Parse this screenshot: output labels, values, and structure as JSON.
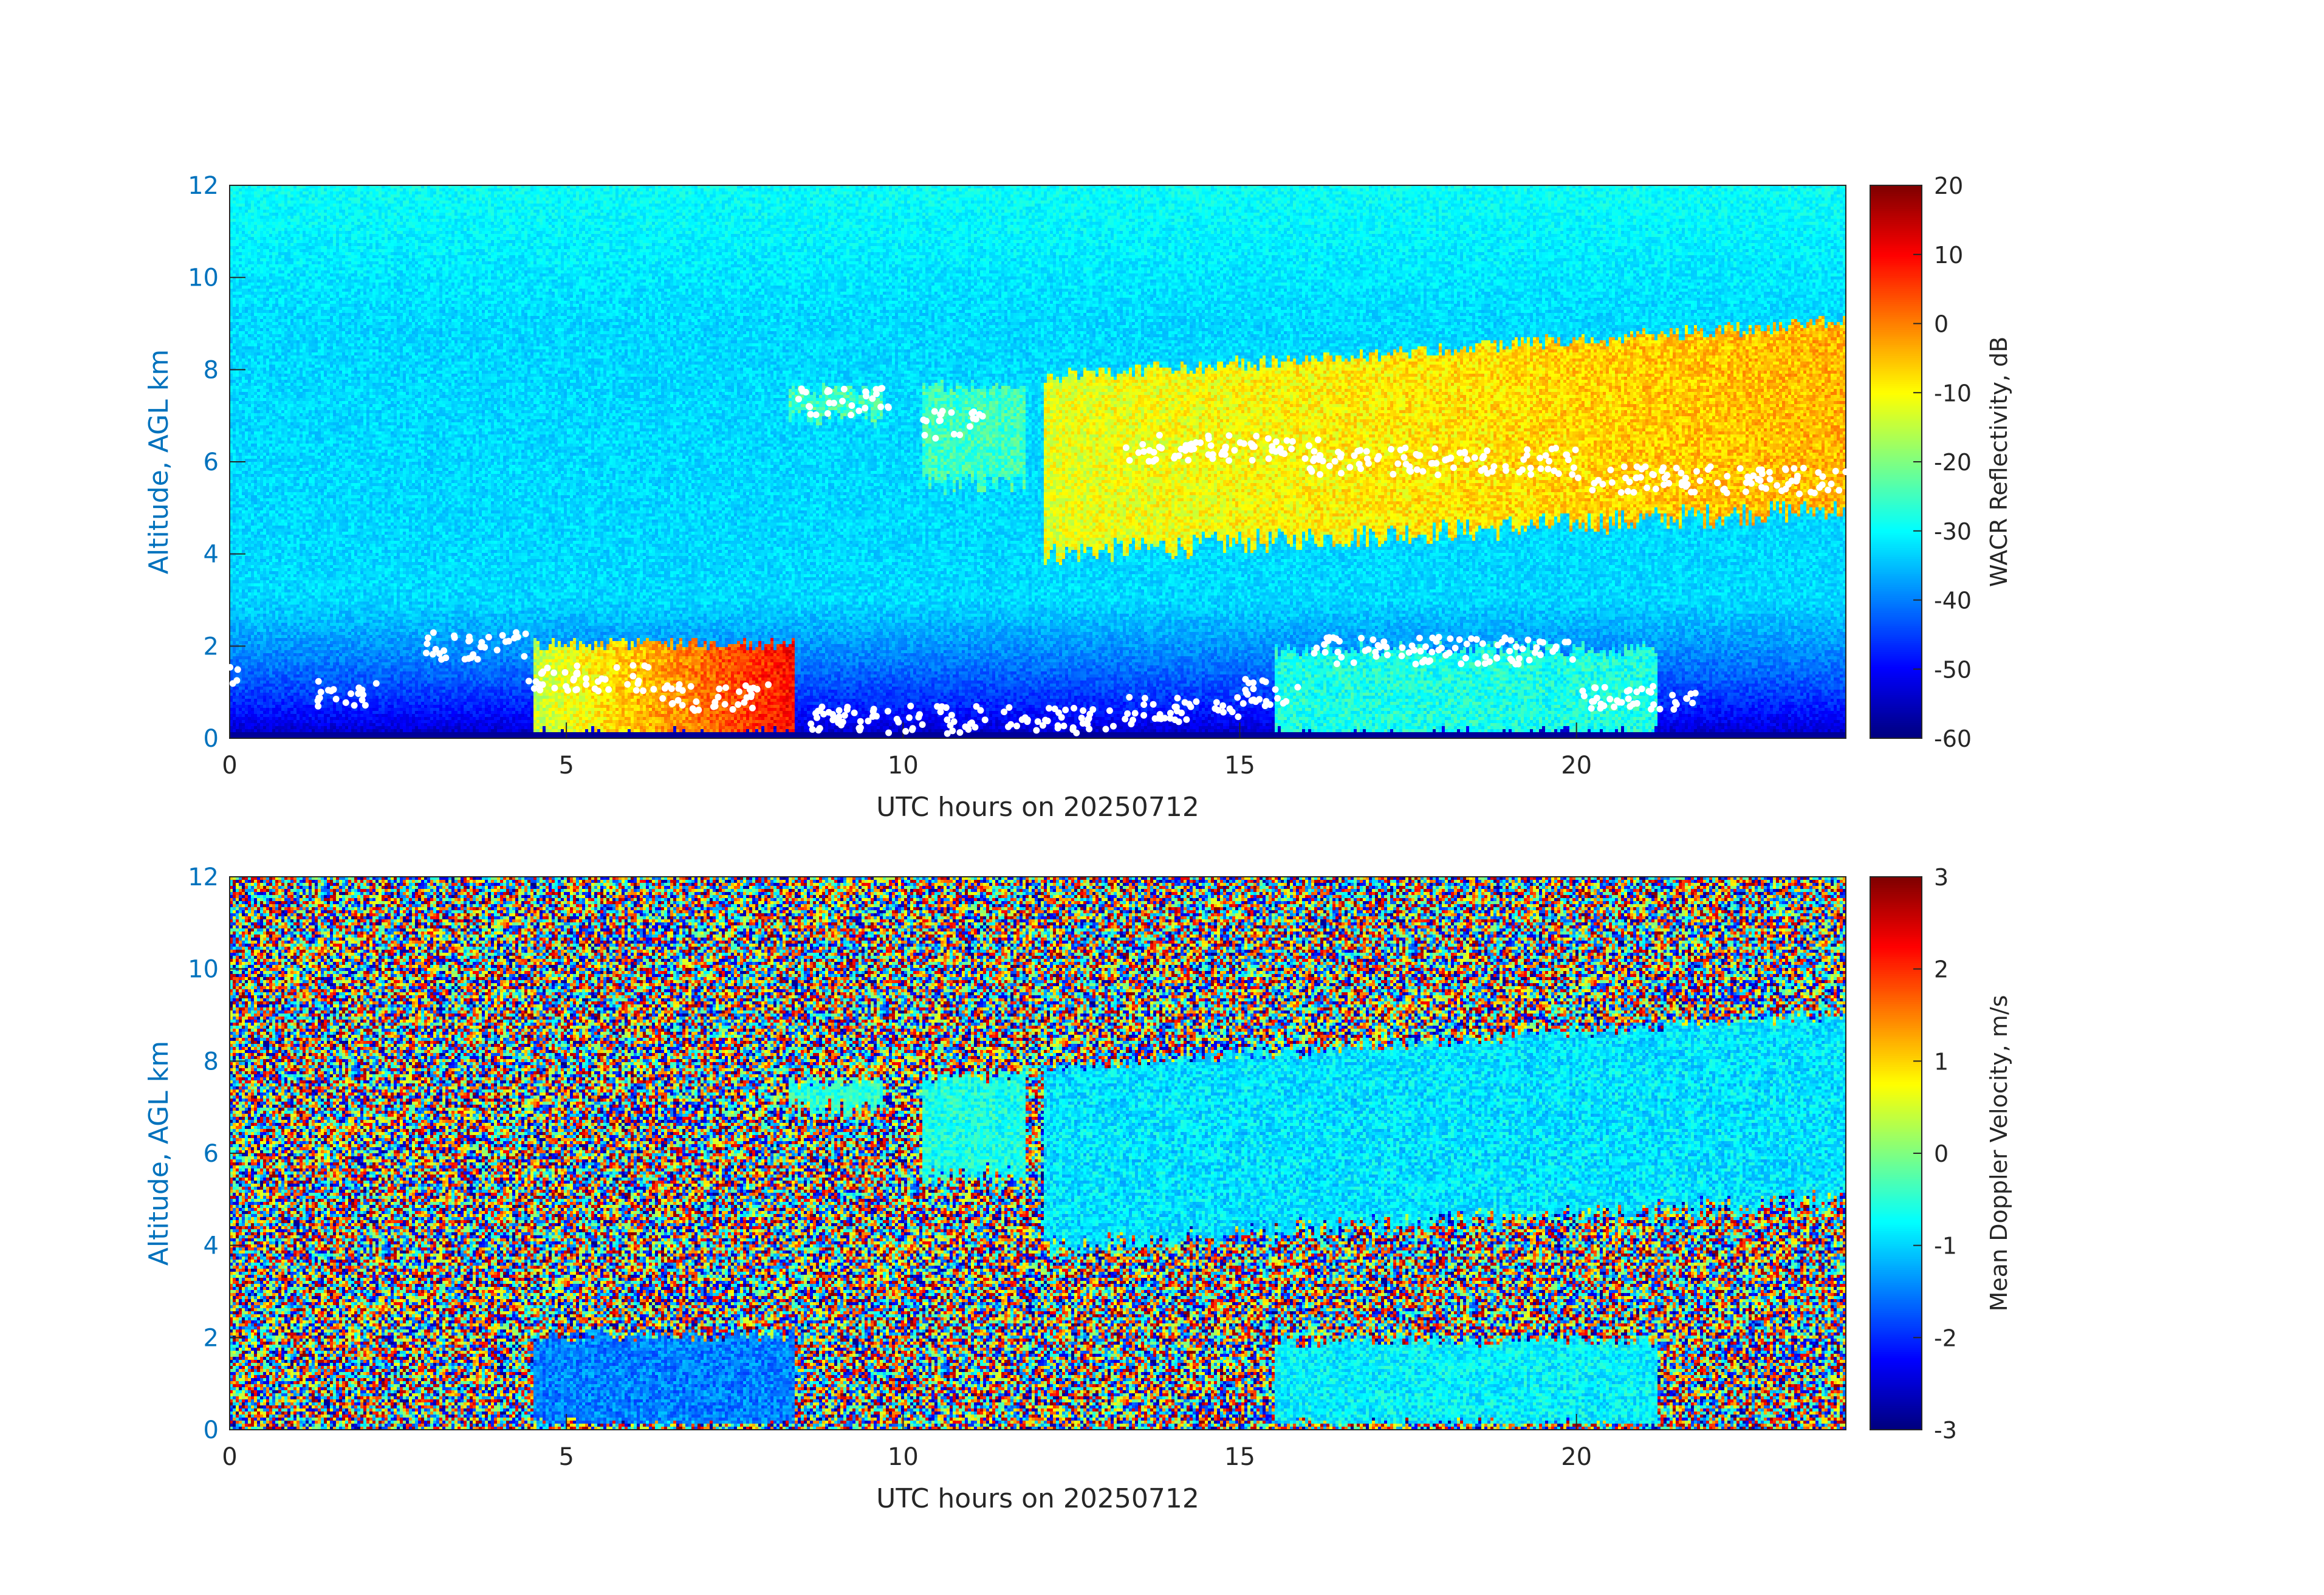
{
  "chart_data": [
    {
      "type": "heatmap",
      "xlabel": "UTC hours on 20250712",
      "ylabel": "Altitude, AGL km",
      "xlim": [
        0,
        24
      ],
      "ylim": [
        0,
        12
      ],
      "xticks": [
        "0",
        "5",
        "10",
        "15",
        "20"
      ],
      "yticks": [
        "0",
        "2",
        "4",
        "6",
        "8",
        "10",
        "12"
      ],
      "colorbar": {
        "label": "WACR Reflectivity, dB",
        "range": [
          -60,
          20
        ],
        "ticks": [
          "20",
          "10",
          "0",
          "-10",
          "-20",
          "-30",
          "-40",
          "-50",
          "-60"
        ],
        "colormap": "jet"
      },
      "background_dB": -33,
      "near_surface_dB": -58,
      "cloud_layers": [
        {
          "x": [
            12.1,
            24.0
          ],
          "base_km": [
            4.0,
            5.0
          ],
          "top_km": [
            8.0,
            9.2
          ],
          "dB": [
            -12,
            -4
          ]
        },
        {
          "x": [
            8.3,
            9.7
          ],
          "base_km": 7.0,
          "top_km": 7.7,
          "dB": -25
        },
        {
          "x": [
            10.3,
            11.8
          ],
          "base_km": 5.5,
          "top_km": 7.8,
          "dB": -25
        },
        {
          "x": [
            4.5,
            8.4
          ],
          "base_km": 0.0,
          "top_km": 2.2,
          "dB": [
            -15,
            10
          ]
        },
        {
          "x": [
            15.5,
            21.2
          ],
          "base_km": 0.0,
          "top_km": 2.1,
          "dB": -28
        }
      ],
      "ceilometer_cloud_base_markers": {
        "color": "#ffffff"
      }
    },
    {
      "type": "heatmap",
      "xlabel": "UTC hours on 20250712",
      "ylabel": "Altitude, AGL km",
      "xlim": [
        0,
        24
      ],
      "ylim": [
        0,
        12
      ],
      "xticks": [
        "0",
        "5",
        "10",
        "15",
        "20"
      ],
      "yticks": [
        "0",
        "2",
        "4",
        "6",
        "8",
        "10",
        "12"
      ],
      "colorbar": {
        "label": "Mean Doppler Velocity, m/s",
        "range": [
          -3,
          3
        ],
        "ticks": [
          "3",
          "2",
          "1",
          "0",
          "-1",
          "-2",
          "-3"
        ],
        "colormap": "jet"
      },
      "noise": "random velocity in [-3, 3] outside detected cloud",
      "cloud_velocity_ms": -0.9,
      "cloud_layers": [
        {
          "x": [
            12.1,
            24.0
          ],
          "base_km": [
            4.0,
            5.0
          ],
          "top_km": [
            8.0,
            9.2
          ],
          "ms": -0.9
        },
        {
          "x": [
            8.3,
            9.7
          ],
          "base_km": 7.0,
          "top_km": 7.7,
          "ms": -0.5
        },
        {
          "x": [
            10.3,
            11.8
          ],
          "base_km": 5.5,
          "top_km": 7.8,
          "ms": -0.6
        },
        {
          "x": [
            4.5,
            8.4
          ],
          "base_km": 0.0,
          "top_km": 2.2,
          "ms": -1.5
        },
        {
          "x": [
            15.5,
            21.2
          ],
          "base_km": 0.0,
          "top_km": 2.1,
          "ms": -0.8
        }
      ]
    }
  ],
  "colors": {
    "axis_label": "#0072bd",
    "tick_text": "#262626",
    "axis_line": "#262626"
  }
}
